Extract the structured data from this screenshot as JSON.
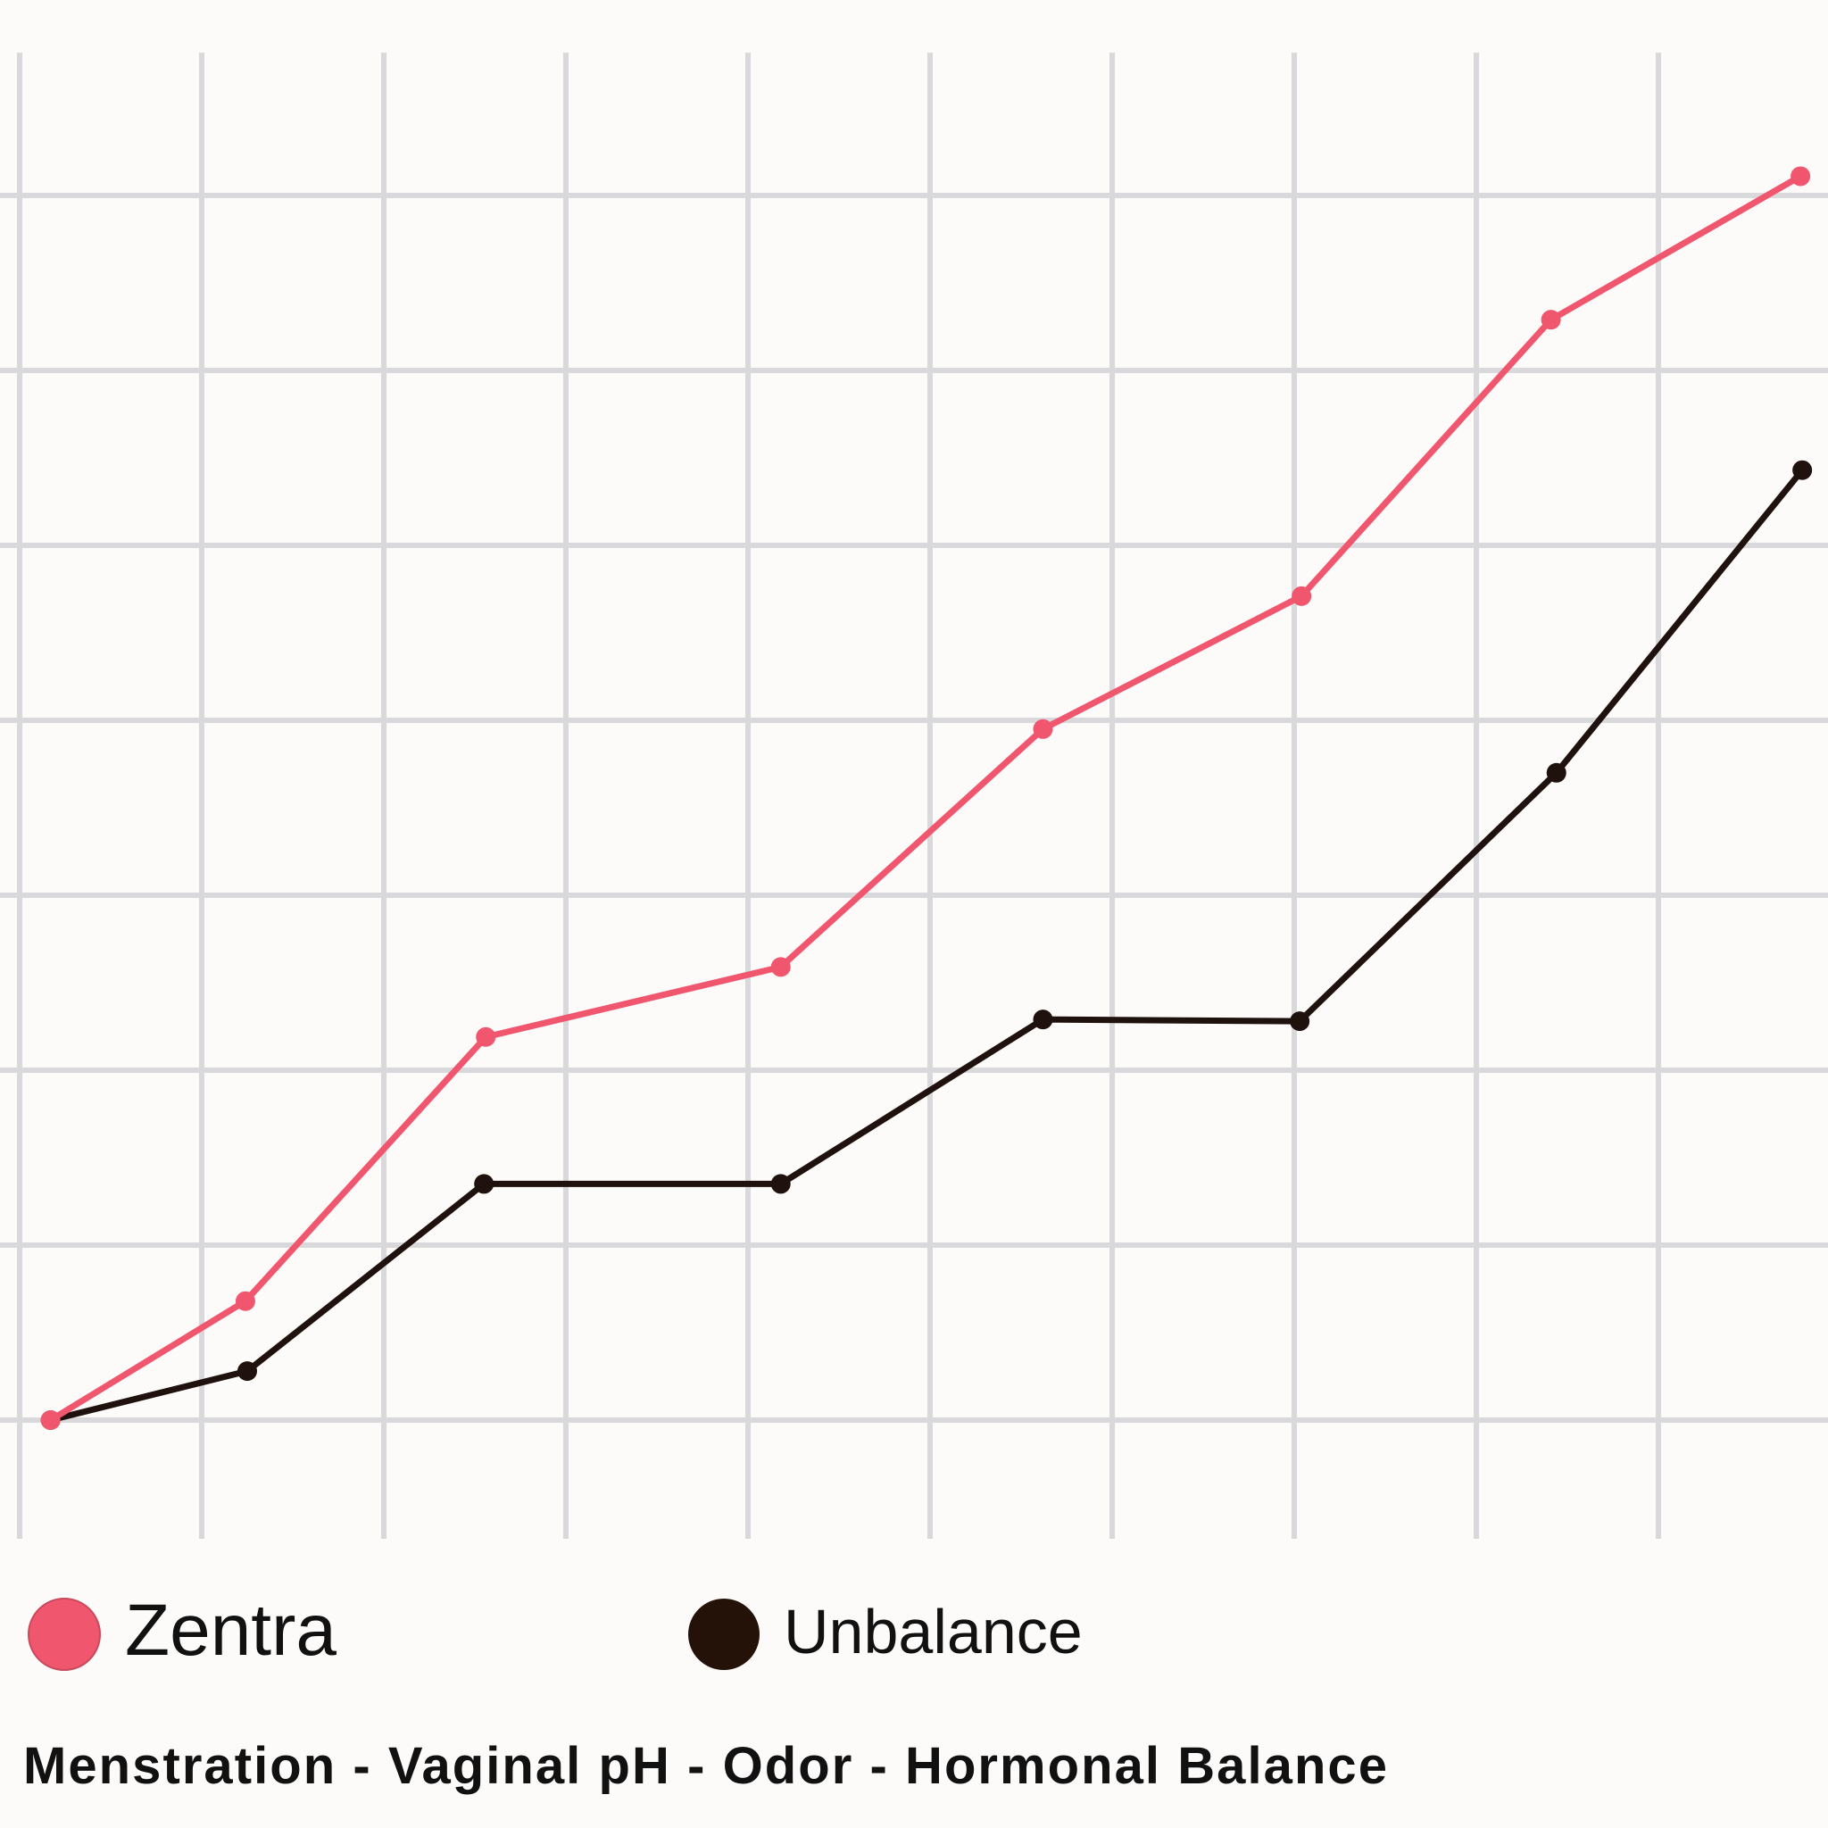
{
  "chart_data": {
    "type": "line",
    "title": "",
    "xlabel": "Menstration - Vaginal pH - Odor - Hormonal Balance",
    "ylabel": "",
    "grid": true,
    "legend_placement": "bottom",
    "xlim": [
      0,
      10
    ],
    "ylim": [
      -0.7,
      9.1
    ],
    "series": [
      {
        "name": "Zentra",
        "color": "#f0566e",
        "x": [
          0.17,
          1.24,
          2.56,
          4.18,
          5.62,
          7.04,
          8.41,
          9.78
        ],
        "y": [
          0,
          0.68,
          2.19,
          2.59,
          3.95,
          4.71,
          6.29,
          7.11
        ]
      },
      {
        "name": "Unbalance",
        "color": "#1f110d",
        "x": [
          0.17,
          1.25,
          2.55,
          4.18,
          5.62,
          7.03,
          8.44,
          9.79
        ],
        "y": [
          0,
          0.28,
          1.35,
          1.35,
          2.29,
          2.28,
          3.7,
          5.43
        ]
      }
    ]
  }
}
